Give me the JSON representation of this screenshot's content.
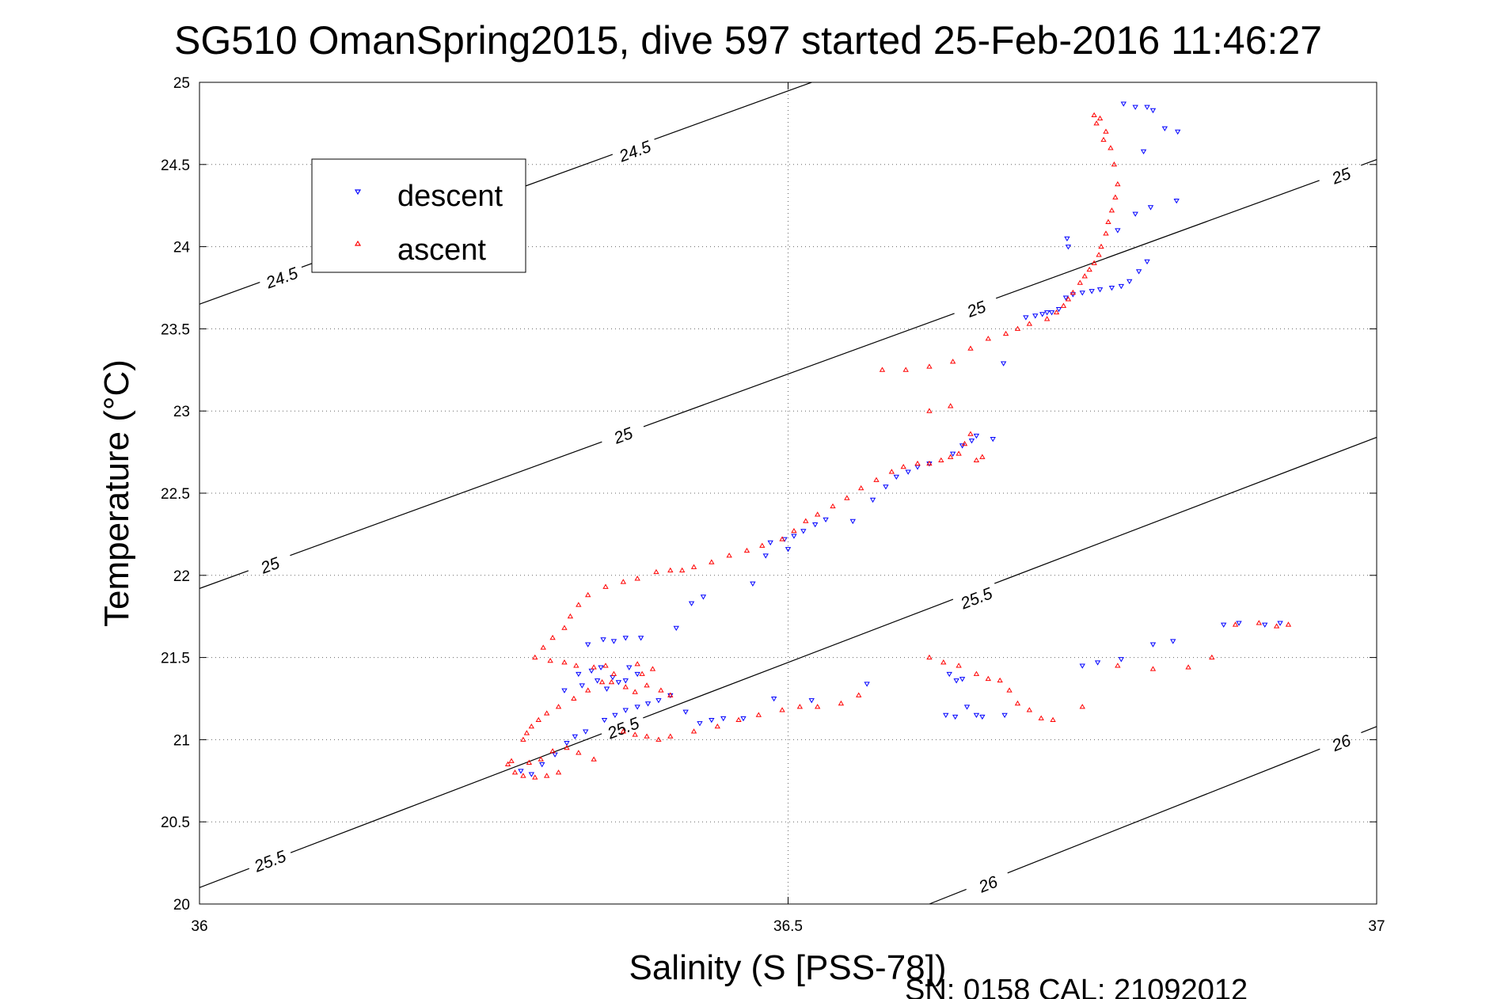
{
  "page": {
    "title": "SG510 OmanSpring2015, dive 597 started 25-Feb-2016 11:46:27",
    "footer": "SN: 0158  CAL: 21092012"
  },
  "chart_data": {
    "type": "scatter",
    "title": "SG510 OmanSpring2015, dive 597 started 25-Feb-2016 11:46:27",
    "xlabel": "Salinity (S [PSS-78])",
    "ylabel": "Temperature (°C)",
    "xlim": [
      36,
      37
    ],
    "ylim": [
      20,
      25
    ],
    "x_ticks": [
      "36",
      "36.5",
      "37"
    ],
    "y_ticks": [
      "20",
      "20.5",
      "21",
      "21.5",
      "22",
      "22.5",
      "23",
      "23.5",
      "24",
      "24.5",
      "25"
    ],
    "grid": true,
    "legend_position": "upper-left",
    "series": [
      {
        "name": "descent",
        "color": "#0000ff",
        "marker": "triangle-down",
        "points": [
          [
            36.273,
            20.81
          ],
          [
            36.282,
            20.79
          ],
          [
            36.291,
            20.85
          ],
          [
            36.302,
            20.91
          ],
          [
            36.312,
            20.98
          ],
          [
            36.319,
            21.02
          ],
          [
            36.328,
            21.05
          ],
          [
            36.344,
            21.12
          ],
          [
            36.353,
            21.15
          ],
          [
            36.362,
            21.18
          ],
          [
            36.372,
            21.2
          ],
          [
            36.381,
            21.22
          ],
          [
            36.39,
            21.24
          ],
          [
            36.4,
            21.27
          ],
          [
            36.31,
            21.3
          ],
          [
            36.325,
            21.33
          ],
          [
            36.338,
            21.36
          ],
          [
            36.322,
            21.4
          ],
          [
            36.333,
            21.42
          ],
          [
            36.341,
            21.44
          ],
          [
            36.351,
            21.38
          ],
          [
            36.362,
            21.36
          ],
          [
            36.372,
            21.4
          ],
          [
            36.356,
            21.35
          ],
          [
            36.346,
            21.31
          ],
          [
            36.365,
            21.44
          ],
          [
            36.33,
            21.58
          ],
          [
            36.343,
            21.61
          ],
          [
            36.352,
            21.6
          ],
          [
            36.362,
            21.62
          ],
          [
            36.375,
            21.62
          ],
          [
            36.405,
            21.68
          ],
          [
            36.418,
            21.83
          ],
          [
            36.428,
            21.87
          ],
          [
            36.47,
            21.95
          ],
          [
            36.481,
            22.12
          ],
          [
            36.5,
            22.16
          ],
          [
            36.413,
            21.17
          ],
          [
            36.425,
            21.1
          ],
          [
            36.435,
            21.12
          ],
          [
            36.445,
            21.13
          ],
          [
            36.462,
            21.13
          ],
          [
            36.488,
            21.25
          ],
          [
            36.52,
            21.24
          ],
          [
            36.567,
            21.34
          ],
          [
            36.485,
            22.2
          ],
          [
            36.497,
            22.22
          ],
          [
            36.505,
            22.24
          ],
          [
            36.513,
            22.27
          ],
          [
            36.523,
            22.31
          ],
          [
            36.532,
            22.34
          ],
          [
            36.555,
            22.33
          ],
          [
            36.572,
            22.46
          ],
          [
            36.583,
            22.54
          ],
          [
            36.592,
            22.6
          ],
          [
            36.602,
            22.63
          ],
          [
            36.61,
            22.66
          ],
          [
            36.62,
            22.68
          ],
          [
            36.64,
            22.74
          ],
          [
            36.648,
            22.79
          ],
          [
            36.656,
            22.82
          ],
          [
            36.66,
            22.85
          ],
          [
            36.674,
            22.83
          ],
          [
            36.683,
            23.29
          ],
          [
            36.702,
            23.57
          ],
          [
            36.71,
            23.58
          ],
          [
            36.716,
            23.59
          ],
          [
            36.72,
            23.6
          ],
          [
            36.724,
            23.6
          ],
          [
            36.73,
            23.62
          ],
          [
            36.736,
            23.69
          ],
          [
            36.742,
            23.71
          ],
          [
            36.75,
            23.72
          ],
          [
            36.758,
            23.73
          ],
          [
            36.765,
            23.74
          ],
          [
            36.775,
            23.75
          ],
          [
            36.783,
            23.76
          ],
          [
            36.79,
            23.79
          ],
          [
            36.798,
            23.85
          ],
          [
            36.805,
            23.91
          ],
          [
            36.737,
            24.05
          ],
          [
            36.738,
            24.0
          ],
          [
            36.78,
            24.1
          ],
          [
            36.795,
            24.2
          ],
          [
            36.808,
            24.24
          ],
          [
            36.83,
            24.28
          ],
          [
            36.802,
            24.58
          ],
          [
            36.785,
            24.87
          ],
          [
            36.795,
            24.85
          ],
          [
            36.805,
            24.85
          ],
          [
            36.81,
            24.83
          ],
          [
            36.82,
            24.72
          ],
          [
            36.831,
            24.7
          ],
          [
            36.637,
            21.4
          ],
          [
            36.643,
            21.36
          ],
          [
            36.648,
            21.37
          ],
          [
            36.652,
            21.2
          ],
          [
            36.634,
            21.15
          ],
          [
            36.642,
            21.14
          ],
          [
            36.66,
            21.15
          ],
          [
            36.665,
            21.14
          ],
          [
            36.684,
            21.15
          ],
          [
            36.75,
            21.45
          ],
          [
            36.763,
            21.47
          ],
          [
            36.783,
            21.49
          ],
          [
            36.81,
            21.58
          ],
          [
            36.827,
            21.6
          ],
          [
            36.87,
            21.7
          ],
          [
            36.883,
            21.71
          ],
          [
            36.905,
            21.7
          ],
          [
            36.918,
            21.71
          ]
        ]
      },
      {
        "name": "ascent",
        "color": "#ff0000",
        "marker": "triangle-up",
        "points": [
          [
            36.262,
            20.85
          ],
          [
            36.268,
            20.8
          ],
          [
            36.275,
            20.78
          ],
          [
            36.285,
            20.77
          ],
          [
            36.295,
            20.78
          ],
          [
            36.305,
            20.8
          ],
          [
            36.265,
            20.87
          ],
          [
            36.28,
            20.86
          ],
          [
            36.29,
            20.88
          ],
          [
            36.3,
            20.93
          ],
          [
            36.312,
            20.95
          ],
          [
            36.322,
            20.92
          ],
          [
            36.335,
            20.88
          ],
          [
            36.275,
            21.0
          ],
          [
            36.278,
            21.04
          ],
          [
            36.282,
            21.08
          ],
          [
            36.288,
            21.12
          ],
          [
            36.295,
            21.16
          ],
          [
            36.305,
            21.2
          ],
          [
            36.318,
            21.25
          ],
          [
            36.33,
            21.3
          ],
          [
            36.342,
            21.35
          ],
          [
            36.352,
            21.4
          ],
          [
            36.345,
            21.45
          ],
          [
            36.335,
            21.44
          ],
          [
            36.32,
            21.45
          ],
          [
            36.31,
            21.47
          ],
          [
            36.298,
            21.48
          ],
          [
            36.285,
            21.5
          ],
          [
            36.292,
            21.56
          ],
          [
            36.3,
            21.62
          ],
          [
            36.31,
            21.68
          ],
          [
            36.315,
            21.75
          ],
          [
            36.322,
            21.82
          ],
          [
            36.33,
            21.88
          ],
          [
            36.345,
            21.93
          ],
          [
            36.36,
            21.96
          ],
          [
            36.372,
            21.98
          ],
          [
            36.388,
            22.02
          ],
          [
            36.4,
            22.03
          ],
          [
            36.41,
            22.03
          ],
          [
            36.35,
            21.35
          ],
          [
            36.362,
            21.32
          ],
          [
            36.37,
            21.29
          ],
          [
            36.38,
            21.33
          ],
          [
            36.392,
            21.3
          ],
          [
            36.4,
            21.27
          ],
          [
            36.376,
            21.4
          ],
          [
            36.385,
            21.43
          ],
          [
            36.372,
            21.46
          ],
          [
            36.36,
            21.05
          ],
          [
            36.37,
            21.03
          ],
          [
            36.38,
            21.02
          ],
          [
            36.39,
            21.0
          ],
          [
            36.4,
            21.02
          ],
          [
            36.42,
            21.05
          ],
          [
            36.44,
            21.08
          ],
          [
            36.458,
            21.12
          ],
          [
            36.475,
            21.15
          ],
          [
            36.495,
            21.18
          ],
          [
            36.51,
            21.2
          ],
          [
            36.525,
            21.2
          ],
          [
            36.545,
            21.22
          ],
          [
            36.56,
            21.27
          ],
          [
            36.42,
            22.05
          ],
          [
            36.435,
            22.08
          ],
          [
            36.45,
            22.12
          ],
          [
            36.465,
            22.15
          ],
          [
            36.478,
            22.18
          ],
          [
            36.495,
            22.22
          ],
          [
            36.505,
            22.27
          ],
          [
            36.515,
            22.33
          ],
          [
            36.525,
            22.37
          ],
          [
            36.538,
            22.42
          ],
          [
            36.55,
            22.47
          ],
          [
            36.562,
            22.53
          ],
          [
            36.575,
            22.58
          ],
          [
            36.588,
            22.63
          ],
          [
            36.598,
            22.66
          ],
          [
            36.61,
            22.68
          ],
          [
            36.62,
            22.68
          ],
          [
            36.63,
            22.7
          ],
          [
            36.638,
            22.72
          ],
          [
            36.645,
            22.74
          ],
          [
            36.65,
            22.8
          ],
          [
            36.655,
            22.86
          ],
          [
            36.66,
            22.7
          ],
          [
            36.665,
            22.72
          ],
          [
            36.58,
            23.25
          ],
          [
            36.6,
            23.25
          ],
          [
            36.62,
            23.27
          ],
          [
            36.64,
            23.3
          ],
          [
            36.655,
            23.38
          ],
          [
            36.67,
            23.44
          ],
          [
            36.685,
            23.47
          ],
          [
            36.695,
            23.5
          ],
          [
            36.705,
            23.53
          ],
          [
            36.72,
            23.56
          ],
          [
            36.728,
            23.6
          ],
          [
            36.734,
            23.64
          ],
          [
            36.738,
            23.68
          ],
          [
            36.742,
            23.72
          ],
          [
            36.748,
            23.78
          ],
          [
            36.752,
            23.82
          ],
          [
            36.756,
            23.86
          ],
          [
            36.76,
            23.9
          ],
          [
            36.764,
            23.95
          ],
          [
            36.766,
            24.0
          ],
          [
            36.77,
            24.08
          ],
          [
            36.772,
            24.15
          ],
          [
            36.775,
            24.22
          ],
          [
            36.778,
            24.3
          ],
          [
            36.78,
            24.38
          ],
          [
            36.777,
            24.5
          ],
          [
            36.774,
            24.6
          ],
          [
            36.77,
            24.7
          ],
          [
            36.765,
            24.78
          ],
          [
            36.76,
            24.8
          ],
          [
            36.762,
            24.75
          ],
          [
            36.768,
            24.65
          ],
          [
            36.62,
            23.0
          ],
          [
            36.638,
            23.03
          ],
          [
            36.62,
            21.5
          ],
          [
            36.632,
            21.47
          ],
          [
            36.645,
            21.45
          ],
          [
            36.66,
            21.4
          ],
          [
            36.67,
            21.37
          ],
          [
            36.68,
            21.36
          ],
          [
            36.688,
            21.3
          ],
          [
            36.695,
            21.22
          ],
          [
            36.705,
            21.18
          ],
          [
            36.715,
            21.13
          ],
          [
            36.725,
            21.12
          ],
          [
            36.75,
            21.2
          ],
          [
            36.78,
            21.45
          ],
          [
            36.81,
            21.43
          ],
          [
            36.84,
            21.44
          ],
          [
            36.86,
            21.5
          ],
          [
            36.88,
            21.7
          ],
          [
            36.9,
            21.71
          ],
          [
            36.915,
            21.69
          ],
          [
            36.925,
            21.7
          ]
        ]
      }
    ],
    "contours": [
      {
        "label": "24.5",
        "start": [
          36.0,
          23.65
        ],
        "end": [
          36.52,
          25.0
        ],
        "label_positions": [
          [
            36.07,
            23.81
          ],
          [
            36.37,
            24.58
          ]
        ]
      },
      {
        "label": "25",
        "start": [
          36.0,
          21.92
        ],
        "end": [
          37.0,
          24.53
        ],
        "label_positions": [
          [
            36.06,
            22.06
          ],
          [
            36.36,
            22.85
          ],
          [
            36.66,
            23.62
          ],
          [
            36.97,
            24.43
          ]
        ]
      },
      {
        "label": "25.5",
        "start": [
          36.0,
          20.1
        ],
        "end": [
          37.0,
          22.84
        ],
        "label_positions": [
          [
            36.06,
            20.26
          ],
          [
            36.36,
            21.07
          ],
          [
            36.66,
            21.86
          ]
        ]
      },
      {
        "label": "26",
        "start": [
          36.62,
          20.0
        ],
        "end": [
          37.0,
          21.08
        ],
        "label_positions": [
          [
            36.67,
            20.12
          ],
          [
            36.97,
            20.98
          ]
        ]
      }
    ]
  }
}
